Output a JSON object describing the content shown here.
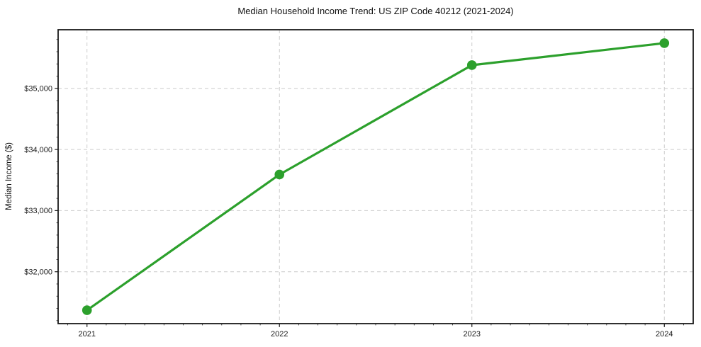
{
  "chart_data": {
    "type": "line",
    "title": "Median Household Income Trend: US ZIP Code 40212 (2021-2024)",
    "xlabel": "",
    "ylabel": "Median Income ($)",
    "x": [
      2021,
      2022,
      2023,
      2024
    ],
    "categories": [
      "2021",
      "2022",
      "2023",
      "2024"
    ],
    "series": [
      {
        "name": "Median Household Income",
        "values": [
          31370,
          33590,
          35380,
          35740
        ]
      }
    ],
    "xticks": [
      {
        "value": 2021,
        "label": "2021"
      },
      {
        "value": 2022,
        "label": "2022"
      },
      {
        "value": 2023,
        "label": "2023"
      },
      {
        "value": 2024,
        "label": "2024"
      }
    ],
    "yticks": [
      {
        "value": 32000,
        "label": "$32,000"
      },
      {
        "value": 33000,
        "label": "$33,000"
      },
      {
        "value": 34000,
        "label": "$34,000"
      },
      {
        "value": 35000,
        "label": "$35,000"
      }
    ],
    "xlim": [
      2020.85,
      2024.15
    ],
    "ylim": [
      31151,
      35959
    ],
    "grid": true,
    "grid_style": "dashed",
    "legend_position": "none",
    "marker": "circle",
    "colors": {
      "line": "#2ca02c",
      "marker": "#2ca02c",
      "grid": "#cccccc",
      "axis": "#1a1a1a",
      "text": "#1a1a1a",
      "background": "#ffffff"
    },
    "minor_ticks": {
      "x_interval": 0.1,
      "y_interval": 200
    }
  }
}
